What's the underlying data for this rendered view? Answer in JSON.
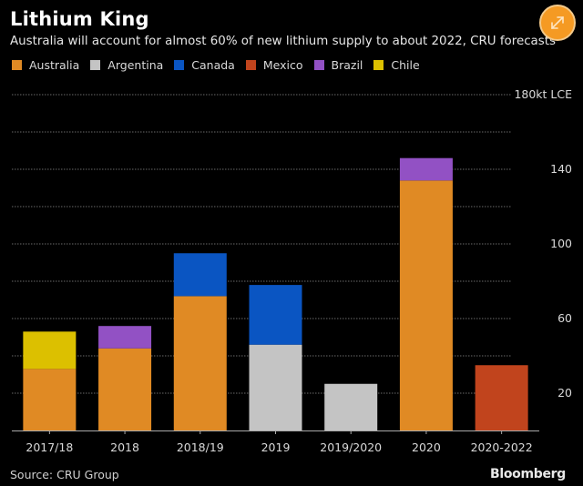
{
  "header": {
    "title": "Lithium King",
    "subtitle": "Australia will account for almost 60% of new lithium supply to about 2022, CRU forecasts",
    "expand_icon": "expand-arrows-icon"
  },
  "colors": {
    "background": "#000000",
    "accent": "#f59a23",
    "gridline": "#555555",
    "axis": "#aaaaaa"
  },
  "footer": {
    "source": "Source: CRU Group",
    "brand": "Bloomberg"
  },
  "chart_data": {
    "type": "bar",
    "stacked": true,
    "title": "Lithium King",
    "subtitle": "Australia will account for almost 60% of new lithium supply to about 2022, CRU forecasts",
    "xlabel": "",
    "ylabel": "kt LCE",
    "unit_label": "180kt LCE",
    "ylim": [
      0,
      180
    ],
    "yticks": [
      20,
      60,
      100,
      140,
      180
    ],
    "ytick_labels": [
      "20",
      "60",
      "100",
      "140",
      "180kt LCE"
    ],
    "gridlines": [
      20,
      40,
      60,
      80,
      100,
      120,
      140,
      160,
      180
    ],
    "grid": true,
    "y_axis_side": "right",
    "legend_position": "top-left",
    "categories": [
      "2017/18",
      "2018",
      "2018/19",
      "2019",
      "2019/2020",
      "2020",
      "2020-2022"
    ],
    "series": [
      {
        "name": "Australia",
        "color": "#e08a24",
        "values": [
          33,
          44,
          72,
          0,
          0,
          134,
          0
        ]
      },
      {
        "name": "Argentina",
        "color": "#c4c4c4",
        "values": [
          0,
          0,
          0,
          46,
          25,
          0,
          0
        ]
      },
      {
        "name": "Canada",
        "color": "#0a55c2",
        "values": [
          0,
          0,
          23,
          32,
          0,
          0,
          0
        ]
      },
      {
        "name": "Mexico",
        "color": "#c1441d",
        "values": [
          0,
          0,
          0,
          0,
          0,
          0,
          35
        ]
      },
      {
        "name": "Brazil",
        "color": "#9251c4",
        "values": [
          0,
          12,
          0,
          0,
          0,
          12,
          0
        ]
      },
      {
        "name": "Chile",
        "color": "#dcc000",
        "values": [
          20,
          0,
          0,
          0,
          0,
          0,
          0
        ]
      }
    ]
  }
}
